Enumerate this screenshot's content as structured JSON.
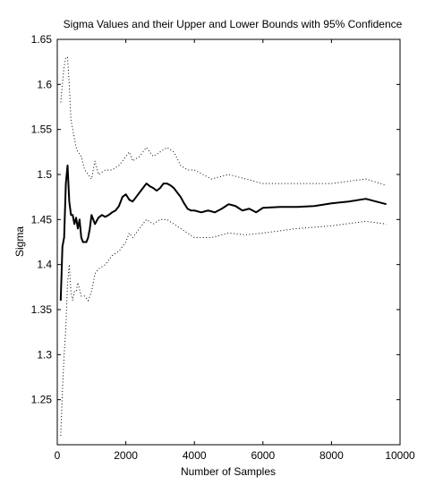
{
  "chart_data": {
    "type": "line",
    "title": "Sigma Values and their Upper and Lower Bounds with 95% Confidence",
    "xlabel": "Number of Samples",
    "ylabel": "Sigma",
    "xlim": [
      0,
      10000
    ],
    "ylim": [
      1.2,
      1.65
    ],
    "xticks": [
      0,
      2000,
      4000,
      6000,
      8000,
      10000
    ],
    "xtick_labels": [
      "0",
      "2000",
      "4000",
      "6000",
      "8000",
      "10000"
    ],
    "yticks": [
      1.25,
      1.3,
      1.35,
      1.4,
      1.45,
      1.5,
      1.55,
      1.6,
      1.65
    ],
    "ytick_labels": [
      "1.25",
      "1.3",
      "1.35",
      "1.4",
      "1.45",
      "1.5",
      "1.55",
      "1.6",
      "1.65"
    ],
    "grid": false,
    "series": [
      {
        "style": "solid",
        "color": "#000000",
        "x": [
          100,
          150,
          200,
          250,
          300,
          350,
          400,
          450,
          500,
          550,
          600,
          650,
          700,
          750,
          800,
          850,
          900,
          950,
          1000,
          1100,
          1200,
          1300,
          1400,
          1500,
          1600,
          1700,
          1800,
          1900,
          2000,
          2100,
          2200,
          2300,
          2400,
          2500,
          2600,
          2700,
          2800,
          2900,
          3000,
          3100,
          3200,
          3300,
          3400,
          3500,
          3600,
          3700,
          3800,
          3900,
          4000,
          4200,
          4400,
          4600,
          4800,
          5000,
          5200,
          5400,
          5600,
          5800,
          6000,
          6500,
          7000,
          7500,
          8000,
          8500,
          9000,
          9300,
          9600
        ],
        "values": [
          1.36,
          1.42,
          1.43,
          1.49,
          1.51,
          1.47,
          1.455,
          1.455,
          1.445,
          1.452,
          1.44,
          1.45,
          1.43,
          1.425,
          1.425,
          1.425,
          1.43,
          1.44,
          1.455,
          1.445,
          1.452,
          1.455,
          1.453,
          1.455,
          1.458,
          1.46,
          1.465,
          1.475,
          1.478,
          1.472,
          1.47,
          1.475,
          1.48,
          1.485,
          1.49,
          1.487,
          1.485,
          1.482,
          1.485,
          1.49,
          1.49,
          1.488,
          1.485,
          1.48,
          1.475,
          1.468,
          1.462,
          1.46,
          1.46,
          1.458,
          1.46,
          1.458,
          1.462,
          1.467,
          1.465,
          1.46,
          1.462,
          1.458,
          1.463,
          1.464,
          1.464,
          1.465,
          1.468,
          1.47,
          1.473,
          1.47,
          1.467
        ]
      },
      {
        "style": "dotted",
        "color": "#000000",
        "x": [
          100,
          150,
          200,
          250,
          300,
          350,
          400,
          450,
          500,
          550,
          600,
          700,
          800,
          900,
          1000,
          1100,
          1200,
          1400,
          1600,
          1800,
          2000,
          2100,
          2200,
          2400,
          2600,
          2800,
          3000,
          3200,
          3400,
          3600,
          3800,
          4000,
          4500,
          5000,
          5500,
          6000,
          7000,
          8000,
          9000,
          9600
        ],
        "values": [
          1.58,
          1.6,
          1.62,
          1.63,
          1.63,
          1.6,
          1.56,
          1.55,
          1.54,
          1.53,
          1.525,
          1.52,
          1.505,
          1.5,
          1.495,
          1.515,
          1.5,
          1.505,
          1.505,
          1.51,
          1.52,
          1.525,
          1.515,
          1.52,
          1.53,
          1.52,
          1.525,
          1.53,
          1.525,
          1.51,
          1.505,
          1.505,
          1.495,
          1.5,
          1.495,
          1.49,
          1.49,
          1.49,
          1.495,
          1.488
        ]
      },
      {
        "style": "dotted",
        "color": "#000000",
        "x": [
          100,
          150,
          200,
          250,
          300,
          350,
          400,
          450,
          500,
          550,
          600,
          700,
          800,
          900,
          1000,
          1100,
          1200,
          1400,
          1600,
          1800,
          2000,
          2100,
          2200,
          2400,
          2600,
          2800,
          3000,
          3200,
          3400,
          3600,
          3800,
          4000,
          4500,
          5000,
          5500,
          6000,
          7000,
          8000,
          9000,
          9600
        ],
        "values": [
          1.21,
          1.26,
          1.3,
          1.33,
          1.38,
          1.4,
          1.37,
          1.36,
          1.37,
          1.37,
          1.38,
          1.365,
          1.365,
          1.36,
          1.37,
          1.39,
          1.395,
          1.4,
          1.41,
          1.415,
          1.425,
          1.435,
          1.43,
          1.44,
          1.45,
          1.445,
          1.45,
          1.45,
          1.445,
          1.44,
          1.435,
          1.43,
          1.43,
          1.435,
          1.433,
          1.435,
          1.44,
          1.443,
          1.448,
          1.445
        ]
      }
    ]
  }
}
